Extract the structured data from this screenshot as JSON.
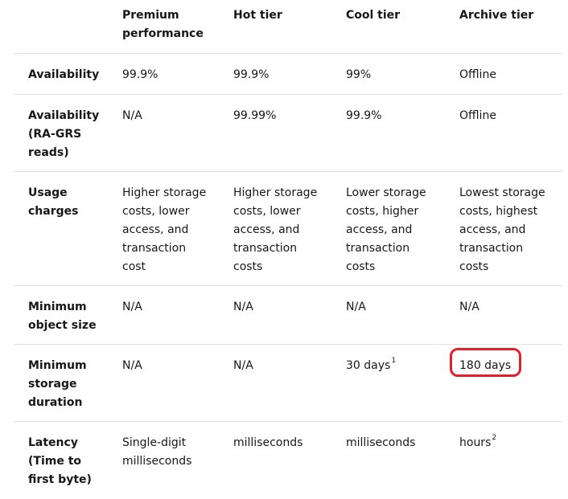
{
  "header": {
    "corner": "",
    "columns": [
      "Premium\nperformance",
      "Hot tier",
      "Cool tier",
      "Archive tier"
    ]
  },
  "rows": [
    {
      "label": "Availability",
      "cells": [
        {
          "text": "99.9%"
        },
        {
          "text": "99.9%"
        },
        {
          "text": "99%"
        },
        {
          "text": "Offline"
        }
      ]
    },
    {
      "label": "Availability\n(RA-GRS\nreads)",
      "cells": [
        {
          "text": "N/A"
        },
        {
          "text": "99.99%"
        },
        {
          "text": "99.9%"
        },
        {
          "text": "Offline"
        }
      ]
    },
    {
      "label": "Usage\ncharges",
      "cells": [
        {
          "text": "Higher storage\ncosts, lower\naccess, and\ntransaction\ncost"
        },
        {
          "text": "Higher storage\ncosts, lower\naccess, and\ntransaction\ncosts"
        },
        {
          "text": "Lower storage\ncosts, higher\naccess, and\ntransaction\ncosts"
        },
        {
          "text": "Lowest storage\ncosts, highest\naccess, and\ntransaction\ncosts"
        }
      ]
    },
    {
      "label": "Minimum\nobject size",
      "cells": [
        {
          "text": "N/A"
        },
        {
          "text": "N/A"
        },
        {
          "text": "N/A"
        },
        {
          "text": "N/A"
        }
      ]
    },
    {
      "label": "Minimum\nstorage\nduration",
      "cells": [
        {
          "text": "N/A"
        },
        {
          "text": "N/A"
        },
        {
          "text": "30 days",
          "sup": "1"
        },
        {
          "text": "180 days",
          "highlighted": true
        }
      ]
    },
    {
      "label": "Latency\n(Time to\nfirst byte)",
      "cells": [
        {
          "text": "Single-digit\nmilliseconds"
        },
        {
          "text": "milliseconds"
        },
        {
          "text": "milliseconds"
        },
        {
          "text": "hours",
          "sup": "2"
        }
      ]
    }
  ],
  "colors": {
    "text": "#171717",
    "divider": "#e1e1e1",
    "highlight_ring": "#e0202a"
  }
}
